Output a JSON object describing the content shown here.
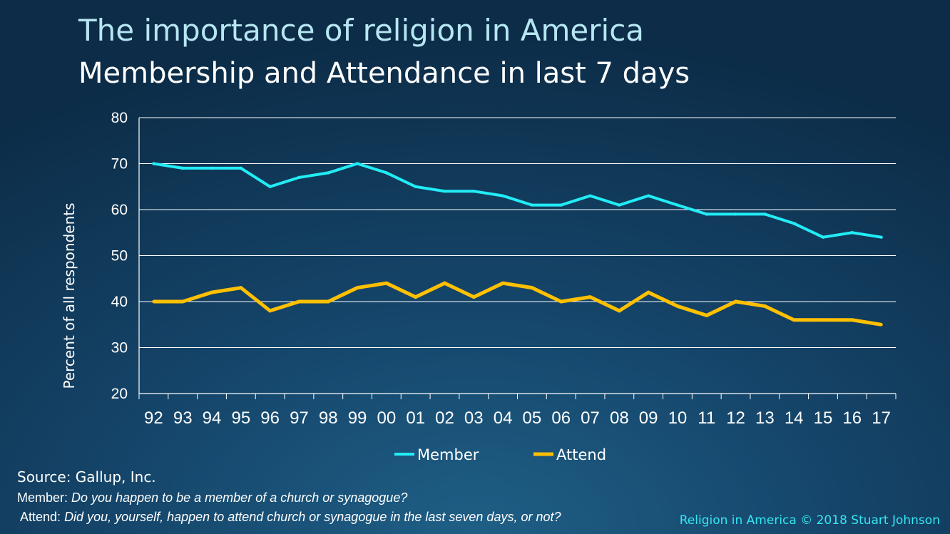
{
  "header": {
    "title": "The importance of religion in America",
    "subtitle": "Membership and Attendance in last 7 days"
  },
  "chart_data": {
    "type": "line",
    "ylabel": "Percent of all respondents",
    "xlabel": "",
    "ylim": [
      20,
      80
    ],
    "yticks": [
      20,
      30,
      40,
      50,
      60,
      70,
      80
    ],
    "grid": "horizontal",
    "legend_position": "bottom",
    "categories": [
      "92",
      "93",
      "94",
      "95",
      "96",
      "97",
      "98",
      "99",
      "00",
      "01",
      "02",
      "03",
      "04",
      "05",
      "06",
      "07",
      "08",
      "09",
      "10",
      "11",
      "12",
      "13",
      "14",
      "15",
      "16",
      "17"
    ],
    "series": [
      {
        "name": "Member",
        "color": "#22ecf5",
        "values": [
          70,
          69,
          69,
          69,
          65,
          67,
          68,
          70,
          68,
          65,
          64,
          64,
          63,
          61,
          61,
          63,
          61,
          63,
          61,
          59,
          59,
          59,
          57,
          54,
          55,
          54
        ]
      },
      {
        "name": "Attend",
        "color": "#ffc000",
        "values": [
          40,
          40,
          42,
          43,
          38,
          40,
          40,
          43,
          44,
          41,
          44,
          41,
          44,
          43,
          40,
          41,
          38,
          42,
          39,
          37,
          40,
          39,
          36,
          36,
          36,
          35
        ]
      }
    ]
  },
  "footer": {
    "source": "Source: Gallup, Inc.",
    "member_label": "Member",
    "member_question": "Do you happen to be a member of a church or synagogue?",
    "attend_label": "Attend",
    "attend_question": "Did you, yourself, happen to attend church or synagogue in the last seven days, or not?",
    "copyright": "Religion in America © 2018 Stuart Johnson"
  }
}
